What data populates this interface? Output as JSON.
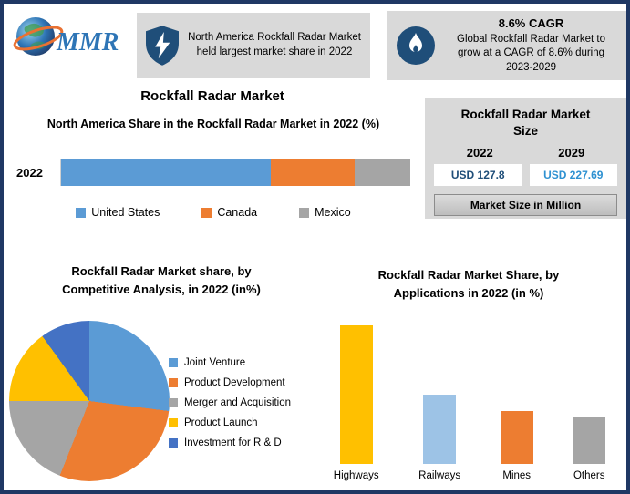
{
  "logo": {
    "text": "MMR",
    "icon": "globe-icon",
    "accent_color": "#2E75B6",
    "swoosh_color": "#E97132"
  },
  "header": {
    "left_callout": {
      "icon": "shield-bolt-icon",
      "text": "North America Rockfall Radar Market held largest market share in 2022"
    },
    "right_callout": {
      "icon": "flame-icon",
      "title": "8.6% CAGR",
      "text": "Global Rockfall Radar Market to grow at a CAGR of 8.6% during 2023-2029"
    }
  },
  "main": {
    "title": "Rockfall Radar Market"
  },
  "market_size_panel": {
    "title": "Rockfall Radar Market Size",
    "year_left": "2022",
    "year_right": "2029",
    "value_left": "USD 127.8",
    "value_right": "USD 227.69",
    "footnote": "Market Size in Million"
  },
  "chart_data": [
    {
      "type": "bar",
      "variant": "horizontal-stacked",
      "title": "North America Share in the Rockfall Radar Market in 2022 (%)",
      "categories": [
        "2022"
      ],
      "series": [
        {
          "name": "United States",
          "values": [
            60
          ],
          "color": "#5B9BD5"
        },
        {
          "name": "Canada",
          "values": [
            24
          ],
          "color": "#ED7D31"
        },
        {
          "name": "Mexico",
          "values": [
            16
          ],
          "color": "#A5A5A5"
        }
      ],
      "xlim": [
        0,
        100
      ],
      "legend_position": "bottom"
    },
    {
      "type": "pie",
      "title": "Rockfall Radar Market share, by Competitive Analysis, in 2022 (in%)",
      "labels": [
        "Joint Venture",
        "Product Development",
        "Merger and Acquisition",
        "Product Launch",
        "Investment for R & D"
      ],
      "values": [
        27,
        29,
        19,
        15,
        10
      ],
      "colors": [
        "#5B9BD5",
        "#ED7D31",
        "#A5A5A5",
        "#FFC000",
        "#4472C4"
      ],
      "legend_position": "right",
      "start_angle_deg": 0
    },
    {
      "type": "bar",
      "title": "Rockfall Radar Market Share, by Applications in 2022 (in %)",
      "categories": [
        "Highways",
        "Railways",
        "Mines",
        "Others"
      ],
      "values": [
        50,
        25,
        19,
        17
      ],
      "colors": [
        "#FFC000",
        "#9DC3E6",
        "#ED7D31",
        "#A5A5A5"
      ],
      "ylim": [
        0,
        50
      ],
      "grid": false
    }
  ]
}
